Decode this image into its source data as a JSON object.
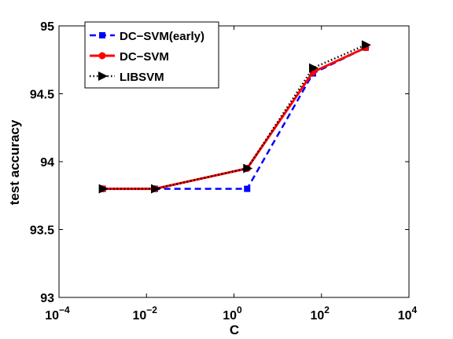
{
  "chart_data": {
    "type": "line",
    "title": "",
    "xlabel": "C",
    "ylabel": "test accuracy",
    "xscale": "log",
    "xlim": [
      0.0001,
      10000
    ],
    "ylim": [
      93,
      95
    ],
    "grid": false,
    "legend_position": "top-left",
    "x_ticks": [
      {
        "value": 0.0001,
        "base": "10",
        "exp": "−4"
      },
      {
        "value": 0.01,
        "base": "10",
        "exp": "−2"
      },
      {
        "value": 1,
        "base": "10",
        "exp": "0"
      },
      {
        "value": 100,
        "base": "10",
        "exp": "2"
      },
      {
        "value": 10000,
        "base": "10",
        "exp": "4"
      }
    ],
    "y_ticks": [
      {
        "value": 93,
        "label": "93"
      },
      {
        "value": 93.5,
        "label": "93.5"
      },
      {
        "value": 94,
        "label": "94"
      },
      {
        "value": 94.5,
        "label": "94.5"
      },
      {
        "value": 95,
        "label": "95"
      }
    ],
    "series": [
      {
        "name": "DC−SVM(early)",
        "color": "#0000ff",
        "line_style": "dashed",
        "marker": "square",
        "x": [
          0.001,
          0.015625,
          2,
          64,
          1024
        ],
        "y": [
          93.8,
          93.8,
          93.8,
          94.65,
          94.84
        ]
      },
      {
        "name": "DC−SVM",
        "color": "#ff0000",
        "line_style": "solid",
        "marker": "circle",
        "x": [
          0.001,
          0.015625,
          2,
          64,
          1024
        ],
        "y": [
          93.8,
          93.8,
          93.95,
          94.66,
          94.84
        ]
      },
      {
        "name": "LIBSVM",
        "color": "#000000",
        "line_style": "dotted",
        "marker": "triangle-right",
        "x": [
          0.001,
          0.015625,
          2,
          64,
          1024
        ],
        "y": [
          93.8,
          93.8,
          93.95,
          94.69,
          94.86
        ]
      }
    ]
  }
}
